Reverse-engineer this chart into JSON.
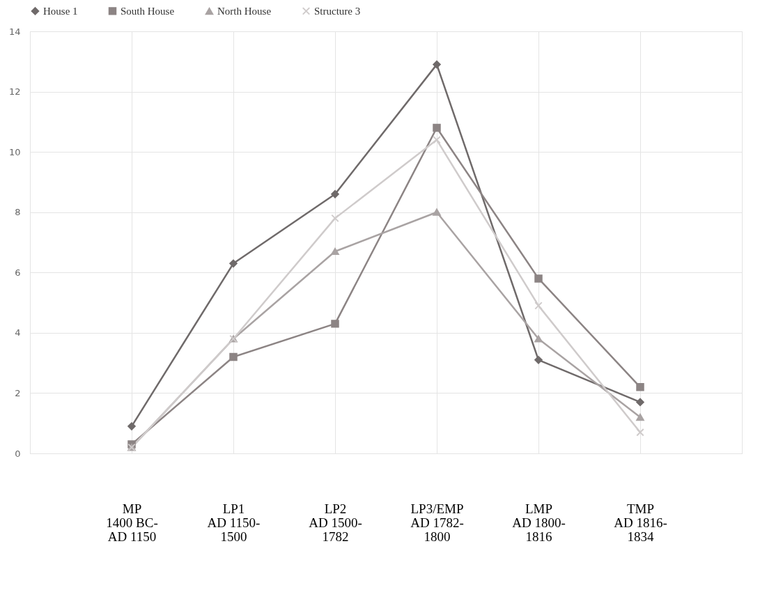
{
  "chart_data": {
    "type": "line",
    "categories": [
      null,
      "MP\n1400 BC-\nAD 1150",
      "LP1\nAD 1150-\n1500",
      "LP2\nAD 1500-\n1782",
      "LP3/EMP\nAD 1782-\n1800",
      "LMP\nAD 1800-\n1816",
      "TMP\nAD 1816-\n1834",
      null
    ],
    "series": [
      {
        "name": "House 1",
        "color": "#6f6a6a",
        "marker": "diamond",
        "values": [
          null,
          0.9,
          6.3,
          8.6,
          12.9,
          3.1,
          1.7,
          null
        ]
      },
      {
        "name": "South House",
        "color": "#8c8484",
        "marker": "square",
        "values": [
          null,
          0.3,
          3.2,
          4.3,
          10.8,
          5.8,
          2.2,
          null
        ]
      },
      {
        "name": "North House",
        "color": "#a9a3a3",
        "marker": "triangle",
        "values": [
          null,
          0.2,
          3.8,
          6.7,
          8.0,
          3.8,
          1.2,
          null
        ]
      },
      {
        "name": "Structure 3",
        "color": "#cfcbcb",
        "marker": "cross",
        "values": [
          null,
          0.2,
          3.8,
          7.8,
          10.4,
          4.9,
          0.7,
          null
        ]
      }
    ],
    "ylim": [
      0,
      14
    ],
    "yticks": [
      0,
      2,
      4,
      6,
      8,
      10,
      12,
      14
    ],
    "grid": true,
    "legend": "top",
    "line_style": "solid"
  }
}
